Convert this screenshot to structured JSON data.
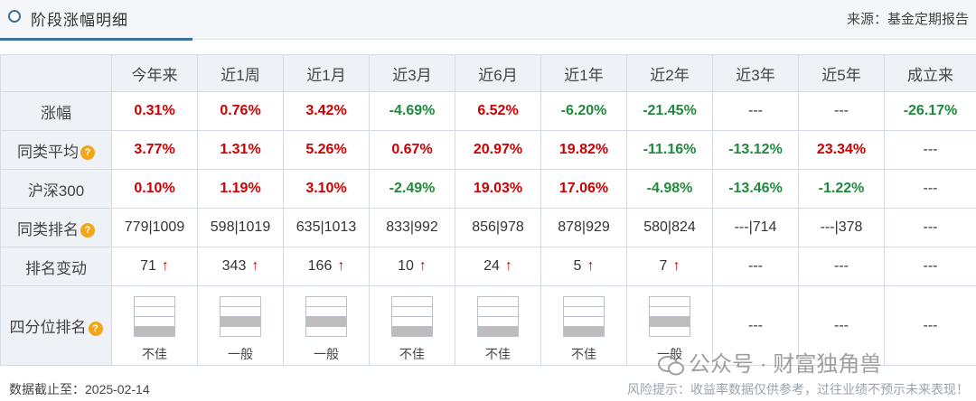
{
  "header": {
    "title": "阶段涨幅明细",
    "source": "来源：基金定期报告"
  },
  "columns": [
    "今年来",
    "近1周",
    "近1月",
    "近3月",
    "近6月",
    "近1年",
    "近2年",
    "近3年",
    "近5年",
    "成立来"
  ],
  "rows": [
    {
      "label": "涨幅",
      "help": false,
      "cells": [
        {
          "v": "0.31%",
          "c": "up"
        },
        {
          "v": "0.76%",
          "c": "up"
        },
        {
          "v": "3.42%",
          "c": "up"
        },
        {
          "v": "-4.69%",
          "c": "down"
        },
        {
          "v": "6.52%",
          "c": "up"
        },
        {
          "v": "-6.20%",
          "c": "down"
        },
        {
          "v": "-21.45%",
          "c": "down"
        },
        {
          "v": "---",
          "c": "flat"
        },
        {
          "v": "---",
          "c": "flat"
        },
        {
          "v": "-26.17%",
          "c": "down"
        }
      ]
    },
    {
      "label": "同类平均",
      "help": true,
      "cells": [
        {
          "v": "3.77%",
          "c": "up"
        },
        {
          "v": "1.31%",
          "c": "up"
        },
        {
          "v": "5.26%",
          "c": "up"
        },
        {
          "v": "0.67%",
          "c": "up"
        },
        {
          "v": "20.97%",
          "c": "up"
        },
        {
          "v": "19.82%",
          "c": "up"
        },
        {
          "v": "-11.16%",
          "c": "down"
        },
        {
          "v": "-13.12%",
          "c": "down"
        },
        {
          "v": "23.34%",
          "c": "up"
        },
        {
          "v": "---",
          "c": "flat"
        }
      ]
    },
    {
      "label": "沪深300",
      "help": false,
      "cells": [
        {
          "v": "0.10%",
          "c": "up"
        },
        {
          "v": "1.19%",
          "c": "up"
        },
        {
          "v": "3.10%",
          "c": "up"
        },
        {
          "v": "-2.49%",
          "c": "down"
        },
        {
          "v": "19.03%",
          "c": "up"
        },
        {
          "v": "17.06%",
          "c": "up"
        },
        {
          "v": "-4.98%",
          "c": "down"
        },
        {
          "v": "-13.46%",
          "c": "down"
        },
        {
          "v": "-1.22%",
          "c": "down"
        },
        {
          "v": "---",
          "c": "flat"
        }
      ]
    },
    {
      "label": "同类排名",
      "help": true,
      "cells": [
        {
          "v": "779|1009",
          "c": "rank"
        },
        {
          "v": "598|1019",
          "c": "rank"
        },
        {
          "v": "635|1013",
          "c": "rank"
        },
        {
          "v": "833|992",
          "c": "rank"
        },
        {
          "v": "856|978",
          "c": "rank"
        },
        {
          "v": "878|929",
          "c": "rank"
        },
        {
          "v": "580|824",
          "c": "rank"
        },
        {
          "v": "---|714",
          "c": "rank"
        },
        {
          "v": "---|378",
          "c": "rank"
        },
        {
          "v": "---",
          "c": "flat"
        }
      ]
    },
    {
      "label": "排名变动",
      "help": false,
      "cells": [
        {
          "v": "71",
          "c": "plain",
          "arrow": true
        },
        {
          "v": "343",
          "c": "plain",
          "arrow": true
        },
        {
          "v": "166",
          "c": "plain",
          "arrow": true
        },
        {
          "v": "10",
          "c": "plain",
          "arrow": true
        },
        {
          "v": "24",
          "c": "plain",
          "arrow": true
        },
        {
          "v": "5",
          "c": "plain",
          "arrow": true
        },
        {
          "v": "7",
          "c": "plain",
          "arrow": true
        },
        {
          "v": "---",
          "c": "flat"
        },
        {
          "v": "---",
          "c": "flat"
        },
        {
          "v": "---",
          "c": "flat"
        }
      ]
    }
  ],
  "arrow_glyph": "↑",
  "help_glyph": "?",
  "quartile": {
    "label": "四分位排名",
    "help": true,
    "cells": [
      {
        "fill": 4,
        "text": "不佳"
      },
      {
        "fill": 3,
        "text": "一般"
      },
      {
        "fill": 3,
        "text": "一般"
      },
      {
        "fill": 4,
        "text": "不佳"
      },
      {
        "fill": 4,
        "text": "不佳"
      },
      {
        "fill": 4,
        "text": "不佳"
      },
      {
        "fill": 3,
        "text": "一般"
      },
      {
        "text": "---"
      },
      {
        "text": "---"
      },
      {
        "text": "---"
      }
    ]
  },
  "footer": {
    "date_text": "数据截止至：2025-02-14",
    "risk_text": "风险提示：收益率数据仅供参考，过往业绩不预示未来表现！"
  },
  "watermark": {
    "text": "公众号 · 财富独角兽"
  },
  "colors": {
    "up": "#cc0000",
    "down": "#1f8a3b",
    "accent": "#3f6f9a",
    "help": "#f2a71b"
  }
}
